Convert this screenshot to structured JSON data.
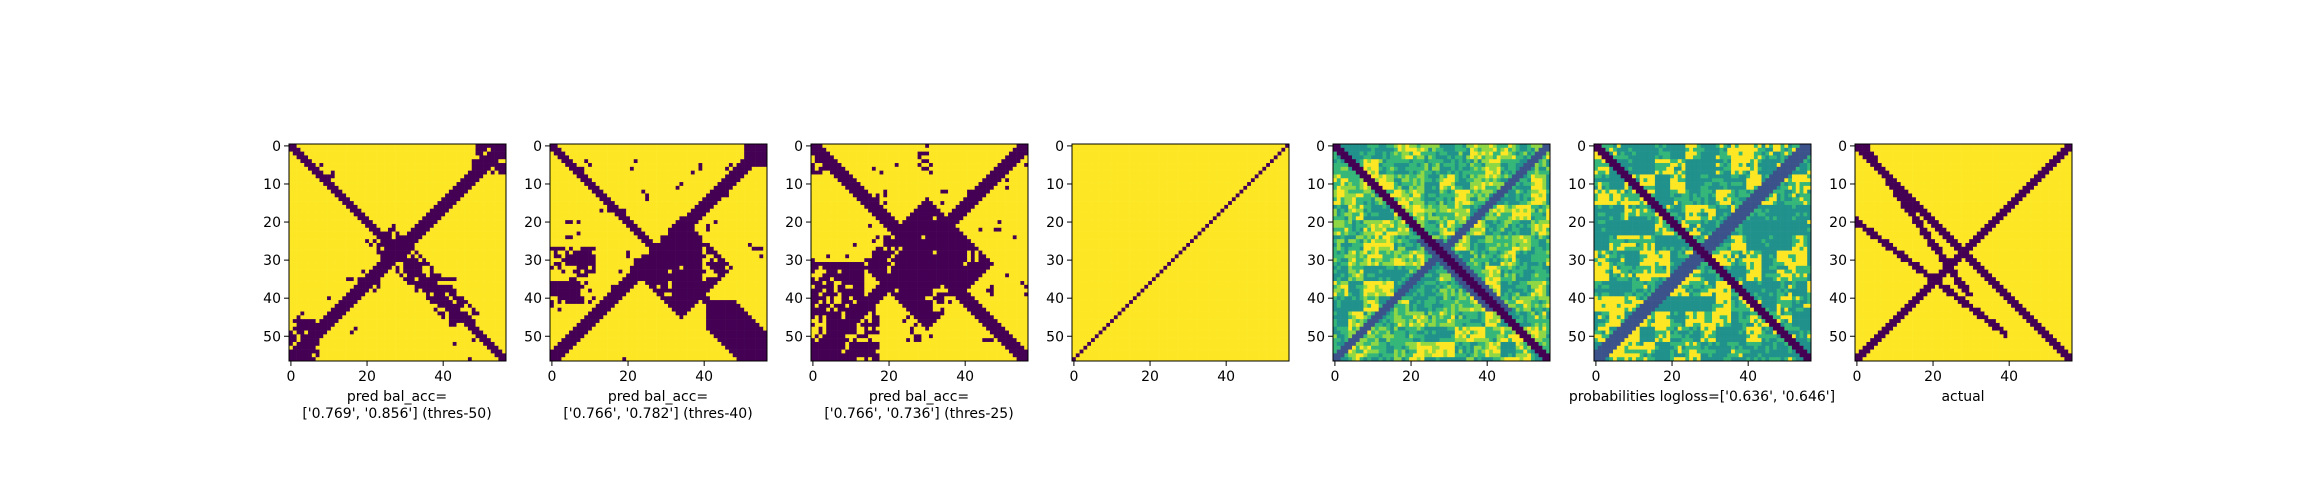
{
  "figure": {
    "panels": [
      {
        "id": "p1",
        "caption": [
          "pred bal_acc=",
          "['0.769', '0.856'] (thres-50)"
        ]
      },
      {
        "id": "p2",
        "caption": [
          "pred bal_acc=",
          "['0.766', '0.782'] (thres-40)"
        ]
      },
      {
        "id": "p3",
        "caption": [
          "pred bal_acc=",
          "['0.766', '0.736'] (thres-25)"
        ]
      },
      {
        "id": "p4",
        "caption": []
      },
      {
        "id": "p5",
        "caption": []
      },
      {
        "id": "p6",
        "caption": [
          "probabilities logloss=['0.636', '0.646']"
        ]
      },
      {
        "id": "p7",
        "caption": [
          "actual"
        ]
      }
    ]
  },
  "chart_data": [
    {
      "type": "heatmap",
      "title": "",
      "xlabel": "pred bal_acc=\n['0.769', '0.856'] (thres-50)",
      "ylabel": "",
      "grid_size": 57,
      "xlim": [
        0,
        57
      ],
      "ylim": [
        57,
        0
      ],
      "x_ticks": [
        0,
        20,
        40
      ],
      "y_ticks": [
        0,
        10,
        20,
        30,
        40,
        50
      ],
      "colormap": "viridis",
      "value_range": [
        0,
        1
      ],
      "description": "binary contact map: X-shaped band of value 0 on background 1"
    },
    {
      "type": "heatmap",
      "title": "",
      "xlabel": "pred bal_acc=\n['0.766', '0.782'] (thres-40)",
      "ylabel": "",
      "grid_size": 57,
      "xlim": [
        0,
        57
      ],
      "ylim": [
        57,
        0
      ],
      "x_ticks": [
        0,
        20,
        40
      ],
      "y_ticks": [
        0,
        10,
        20,
        30,
        40,
        50
      ],
      "colormap": "viridis",
      "value_range": [
        0,
        1
      ]
    },
    {
      "type": "heatmap",
      "title": "",
      "xlabel": "pred bal_acc=\n['0.766', '0.736'] (thres-25)",
      "ylabel": "",
      "grid_size": 57,
      "xlim": [
        0,
        57
      ],
      "ylim": [
        57,
        0
      ],
      "x_ticks": [
        0,
        20,
        40
      ],
      "y_ticks": [
        0,
        10,
        20,
        30,
        40,
        50
      ],
      "colormap": "viridis",
      "value_range": [
        0,
        1
      ]
    },
    {
      "type": "heatmap",
      "title": "",
      "xlabel": "",
      "ylabel": "",
      "grid_size": 57,
      "xlim": [
        0,
        57
      ],
      "ylim": [
        57,
        0
      ],
      "x_ticks": [
        0,
        20,
        40
      ],
      "y_ticks": [
        0,
        10,
        20,
        30,
        40,
        50
      ],
      "colormap": "viridis",
      "value_range": [
        0,
        1
      ],
      "description": "all 1 except anti-diagonal line of 0"
    },
    {
      "type": "heatmap",
      "title": "",
      "xlabel": "",
      "ylabel": "",
      "grid_size": 57,
      "xlim": [
        0,
        57
      ],
      "ylim": [
        57,
        0
      ],
      "x_ticks": [
        0,
        20,
        40
      ],
      "y_ticks": [
        0,
        10,
        20,
        30,
        40,
        50
      ],
      "colormap": "viridis",
      "value_range": [
        0,
        1
      ],
      "description": "continuous probabilities, mostly teal/green with yellow patches"
    },
    {
      "type": "heatmap",
      "title": "",
      "xlabel": "probabilities logloss=['0.636', '0.646']",
      "ylabel": "",
      "grid_size": 57,
      "xlim": [
        0,
        57
      ],
      "ylim": [
        57,
        0
      ],
      "x_ticks": [
        0,
        20,
        40
      ],
      "y_ticks": [
        0,
        10,
        20,
        30,
        40,
        50
      ],
      "colormap": "viridis",
      "value_range": [
        0,
        1
      ]
    },
    {
      "type": "heatmap",
      "title": "",
      "xlabel": "actual",
      "ylabel": "",
      "grid_size": 57,
      "xlim": [
        0,
        57
      ],
      "ylim": [
        57,
        0
      ],
      "x_ticks": [
        0,
        20,
        40
      ],
      "y_ticks": [
        0,
        10,
        20,
        30,
        40,
        50
      ],
      "colormap": "viridis",
      "value_range": [
        0,
        1
      ],
      "description": "ground-truth contacts: thin X-shaped bands of 0 on background 1"
    }
  ],
  "colors": {
    "low": "#440154",
    "mid": "#21918c",
    "midlight": "#35b779",
    "high": "#fde725",
    "axis": "#000000"
  }
}
